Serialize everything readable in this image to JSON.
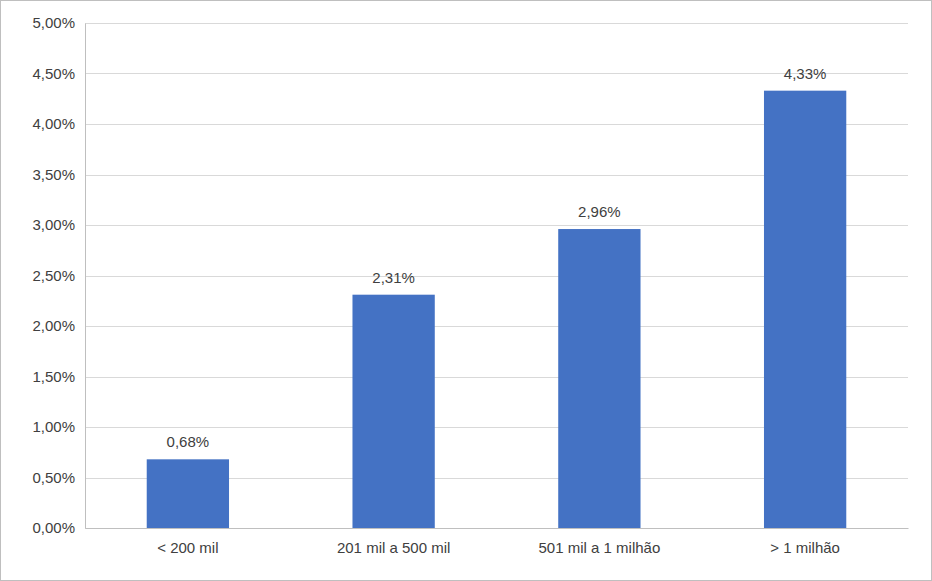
{
  "chart_data": {
    "type": "bar",
    "categories": [
      "< 200 mil",
      "201 mil a 500 mil",
      "501 mil a 1 milhão",
      "> 1 milhão"
    ],
    "values": [
      0.68,
      2.31,
      2.96,
      4.33
    ],
    "value_labels": [
      "0,68%",
      "2,31%",
      "2,96%",
      "4,33%"
    ],
    "color": "#4472c4",
    "ylim": [
      0,
      5
    ],
    "yticks": [
      {
        "value": 0,
        "label": "0,00%"
      },
      {
        "value": 0.5,
        "label": "0,50%"
      },
      {
        "value": 1,
        "label": "1,00%"
      },
      {
        "value": 1.5,
        "label": "1,50%"
      },
      {
        "value": 2,
        "label": "2,00%"
      },
      {
        "value": 2.5,
        "label": "2,50%"
      },
      {
        "value": 3,
        "label": "3,00%"
      },
      {
        "value": 3.5,
        "label": "3,50%"
      },
      {
        "value": 4,
        "label": "4,00%"
      },
      {
        "value": 4.5,
        "label": "4,50%"
      },
      {
        "value": 5,
        "label": "5,00%"
      }
    ],
    "grid": true,
    "data_labels": true
  }
}
